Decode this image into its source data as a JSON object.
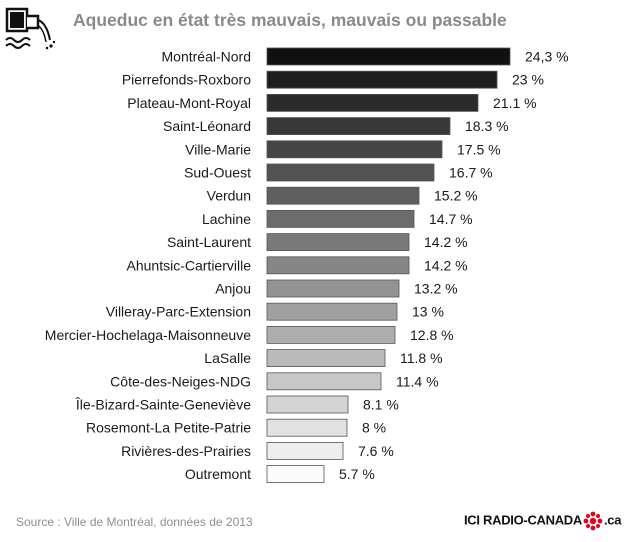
{
  "header": {
    "title": "Aqueduc en état très mauvais, mauvais ou passable"
  },
  "icons": {
    "header_icon": "water-pipe-icon",
    "brand_logo": "radio-canada-gem-icon"
  },
  "chart_data": {
    "type": "bar",
    "orientation": "horizontal",
    "title": "Aqueduc en état très mauvais, mauvais ou passable",
    "xlabel": "",
    "ylabel": "",
    "xlim": [
      0,
      24.3
    ],
    "unit": "%",
    "categories": [
      "Montréal-Nord",
      "Pierrefonds-Roxboro",
      "Plateau-Mont-Royal",
      "Saint-Léonard",
      "Ville-Marie",
      "Sud-Ouest",
      "Verdun",
      "Lachine",
      "Saint-Laurent",
      "Ahuntsic-Cartierville",
      "Anjou",
      "Villeray-Parc-Extension",
      "Mercier-Hochelaga-Maisonneuve",
      "LaSalle",
      "Côte-des-Neiges-NDG",
      "Île-Bizard-Sainte-Geneviève",
      "Rosemont-La Petite-Patrie",
      "Rivières-des-Prairies",
      "Outremont"
    ],
    "values": [
      24.3,
      23,
      21.1,
      18.3,
      17.5,
      16.7,
      15.2,
      14.7,
      14.2,
      14.2,
      13.2,
      13,
      12.8,
      11.8,
      11.4,
      8.1,
      8,
      7.6,
      5.7
    ],
    "labels": [
      "24,3 %",
      "23 %",
      "21.1 %",
      "18.3 %",
      "17.5 %",
      "16.7 %",
      "15.2 %",
      "14.7 %",
      "14.2 %",
      "14.2 %",
      "13.2 %",
      "13 %",
      "12.8 %",
      "11.8 %",
      "11.4 %",
      "8.1 %",
      "8 %",
      "7.6 %",
      "5.7 %"
    ],
    "colors": {
      "darkest": "#111111",
      "lightest": "#fbfbfb",
      "stroke": "#555555"
    }
  },
  "footer": {
    "source": "Source : Ville de Montréal, données de 2013",
    "brand_left": "ICI RADIO-CANADA",
    "brand_right": ".ca"
  }
}
